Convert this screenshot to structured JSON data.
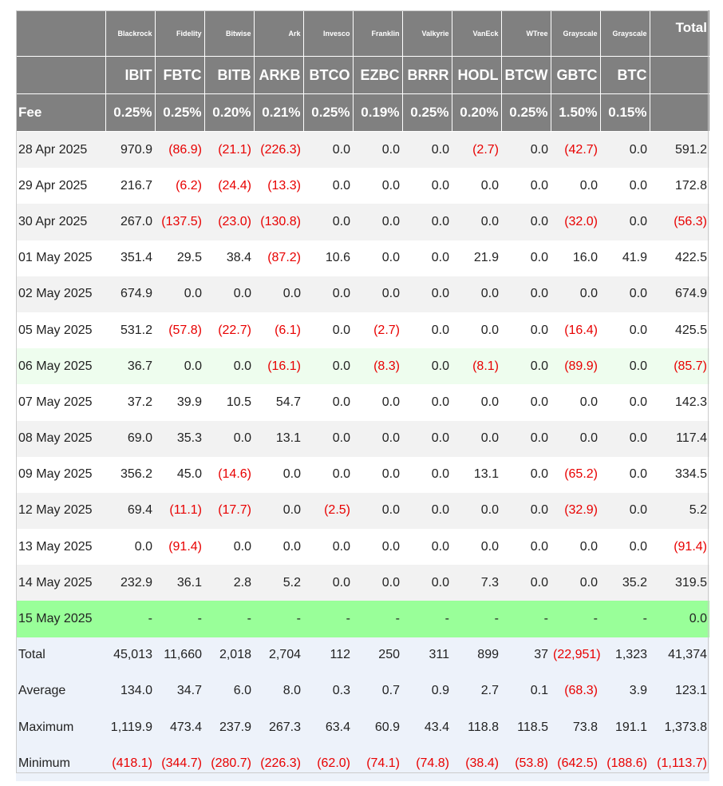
{
  "header": {
    "issuers": [
      "",
      "Blackrock",
      "Fidelity",
      "Bitwise",
      "Ark",
      "Invesco",
      "Franklin",
      "Valkyrie",
      "VanEck",
      "WTree",
      "Grayscale",
      "Grayscale",
      "Total"
    ],
    "tickers": [
      "",
      "IBIT",
      "FBTC",
      "BITB",
      "ARKB",
      "BTCO",
      "EZBC",
      "BRRR",
      "HODL",
      "BTCW",
      "GBTC",
      "BTC",
      ""
    ],
    "fees": [
      "Fee",
      "0.25%",
      "0.25%",
      "0.20%",
      "0.21%",
      "0.25%",
      "0.19%",
      "0.25%",
      "0.20%",
      "0.25%",
      "1.50%",
      "0.15%",
      ""
    ]
  },
  "rows": [
    {
      "date": "28 Apr 2025",
      "style": "odd",
      "values": [
        "970.9",
        "(86.9)",
        "(21.1)",
        "(226.3)",
        "0.0",
        "0.0",
        "0.0",
        "(2.7)",
        "0.0",
        "(42.7)",
        "0.0",
        "591.2"
      ]
    },
    {
      "date": "29 Apr 2025",
      "style": "even",
      "values": [
        "216.7",
        "(6.2)",
        "(24.4)",
        "(13.3)",
        "0.0",
        "0.0",
        "0.0",
        "0.0",
        "0.0",
        "0.0",
        "0.0",
        "172.8"
      ]
    },
    {
      "date": "30 Apr 2025",
      "style": "odd",
      "values": [
        "267.0",
        "(137.5)",
        "(23.0)",
        "(130.8)",
        "0.0",
        "0.0",
        "0.0",
        "0.0",
        "0.0",
        "(32.0)",
        "0.0",
        "(56.3)"
      ]
    },
    {
      "date": "01 May 2025",
      "style": "even",
      "values": [
        "351.4",
        "29.5",
        "38.4",
        "(87.2)",
        "10.6",
        "0.0",
        "0.0",
        "21.9",
        "0.0",
        "16.0",
        "41.9",
        "422.5"
      ]
    },
    {
      "date": "02 May 2025",
      "style": "odd",
      "values": [
        "674.9",
        "0.0",
        "0.0",
        "0.0",
        "0.0",
        "0.0",
        "0.0",
        "0.0",
        "0.0",
        "0.0",
        "0.0",
        "674.9"
      ]
    },
    {
      "date": "05 May 2025",
      "style": "even",
      "values": [
        "531.2",
        "(57.8)",
        "(22.7)",
        "(6.1)",
        "0.0",
        "(2.7)",
        "0.0",
        "0.0",
        "0.0",
        "(16.4)",
        "0.0",
        "425.5"
      ]
    },
    {
      "date": "06 May 2025",
      "style": "hl-light",
      "values": [
        "36.7",
        "0.0",
        "0.0",
        "(16.1)",
        "0.0",
        "(8.3)",
        "0.0",
        "(8.1)",
        "0.0",
        "(89.9)",
        "0.0",
        "(85.7)"
      ]
    },
    {
      "date": "07 May 2025",
      "style": "even",
      "values": [
        "37.2",
        "39.9",
        "10.5",
        "54.7",
        "0.0",
        "0.0",
        "0.0",
        "0.0",
        "0.0",
        "0.0",
        "0.0",
        "142.3"
      ]
    },
    {
      "date": "08 May 2025",
      "style": "odd",
      "values": [
        "69.0",
        "35.3",
        "0.0",
        "13.1",
        "0.0",
        "0.0",
        "0.0",
        "0.0",
        "0.0",
        "0.0",
        "0.0",
        "117.4"
      ]
    },
    {
      "date": "09 May 2025",
      "style": "even",
      "values": [
        "356.2",
        "45.0",
        "(14.6)",
        "0.0",
        "0.0",
        "0.0",
        "0.0",
        "13.1",
        "0.0",
        "(65.2)",
        "0.0",
        "334.5"
      ]
    },
    {
      "date": "12 May 2025",
      "style": "odd",
      "values": [
        "69.4",
        "(11.1)",
        "(17.7)",
        "0.0",
        "(2.5)",
        "0.0",
        "0.0",
        "0.0",
        "0.0",
        "(32.9)",
        "0.0",
        "5.2"
      ]
    },
    {
      "date": "13 May 2025",
      "style": "even",
      "values": [
        "0.0",
        "(91.4)",
        "0.0",
        "0.0",
        "0.0",
        "0.0",
        "0.0",
        "0.0",
        "0.0",
        "0.0",
        "0.0",
        "(91.4)"
      ]
    },
    {
      "date": "14 May 2025",
      "style": "odd",
      "values": [
        "232.9",
        "36.1",
        "2.8",
        "5.2",
        "0.0",
        "0.0",
        "0.0",
        "7.3",
        "0.0",
        "0.0",
        "35.2",
        "319.5"
      ]
    },
    {
      "date": "15 May 2025",
      "style": "hl-green",
      "values": [
        "-",
        "-",
        "-",
        "-",
        "-",
        "-",
        "-",
        "-",
        "-",
        "-",
        "-",
        "0.0"
      ]
    },
    {
      "date": "Total",
      "style": "summary",
      "values": [
        "45,013",
        "11,660",
        "2,018",
        "2,704",
        "112",
        "250",
        "311",
        "899",
        "37",
        "(22,951)",
        "1,323",
        "41,374"
      ]
    },
    {
      "date": "Average",
      "style": "summary",
      "values": [
        "134.0",
        "34.7",
        "6.0",
        "8.0",
        "0.3",
        "0.7",
        "0.9",
        "2.7",
        "0.1",
        "(68.3)",
        "3.9",
        "123.1"
      ]
    },
    {
      "date": "Maximum",
      "style": "summary",
      "values": [
        "1,119.9",
        "473.4",
        "237.9",
        "267.3",
        "63.4",
        "60.9",
        "43.4",
        "118.8",
        "118.5",
        "73.8",
        "191.1",
        "1,373.8"
      ]
    },
    {
      "date": "Minimum",
      "style": "summary",
      "values": [
        "(418.1)",
        "(344.7)",
        "(280.7)",
        "(226.3)",
        "(62.0)",
        "(74.1)",
        "(74.8)",
        "(38.4)",
        "(53.8)",
        "(642.5)",
        "(188.6)",
        "(1,113.7)"
      ]
    }
  ],
  "colors": {
    "header_bg": "#808080",
    "negative": "#e80000",
    "row_alt": "#f2f2f2",
    "row_highlight_light": "#eefdee",
    "row_highlight_green": "#99ff99",
    "summary_bg": "#edf2fa"
  }
}
